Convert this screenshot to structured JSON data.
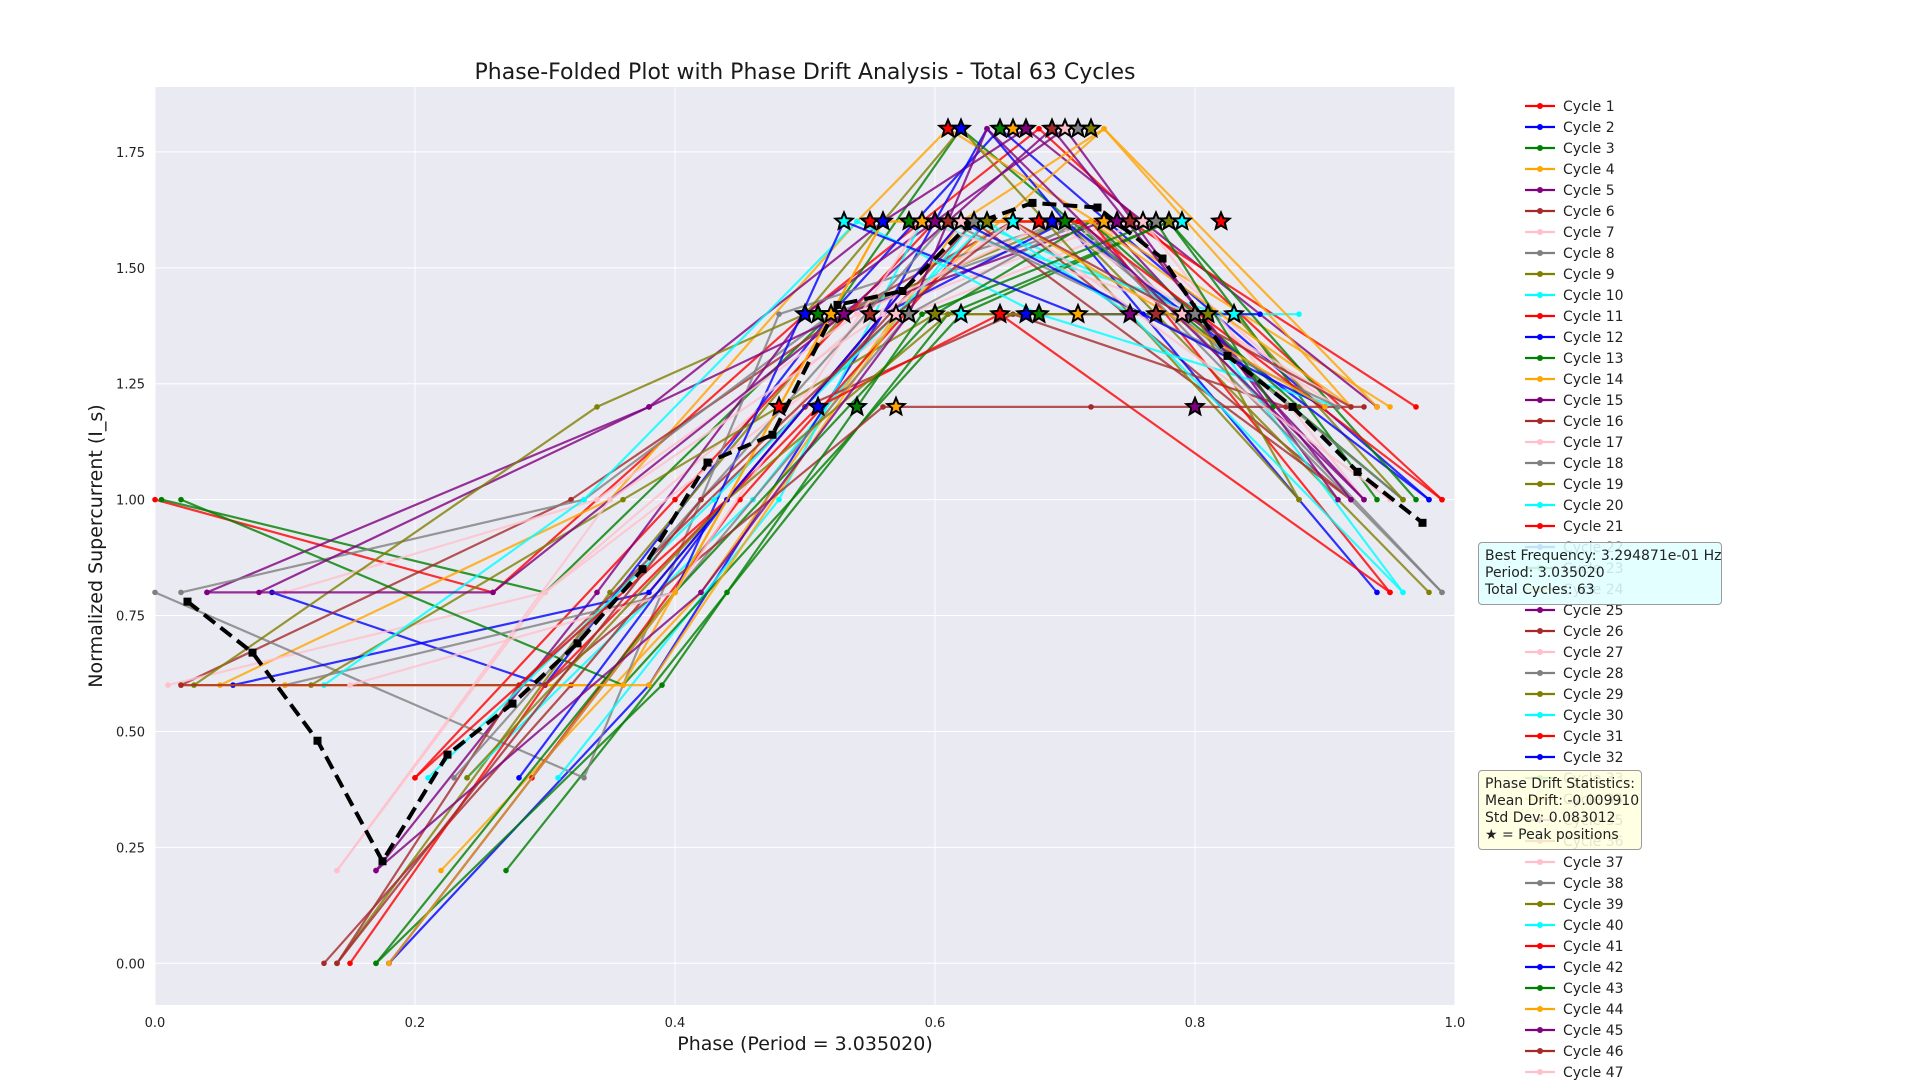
{
  "chart_data": {
    "type": "line",
    "title": "Phase-Folded Plot with Phase Drift Analysis - Total 63 Cycles",
    "xlabel": "Phase (Period = 3.035020)",
    "ylabel": "Normalized Supercurrent (I_s)",
    "xlim": [
      0.0,
      1.0
    ],
    "ylim": [
      -0.09,
      1.89
    ],
    "xticks": [
      "0.0",
      "0.2",
      "0.4",
      "0.6",
      "0.8",
      "1.0"
    ],
    "yticks": [
      "0.00",
      "0.25",
      "0.50",
      "0.75",
      "1.00",
      "1.25",
      "1.50",
      "1.75"
    ],
    "grid": true,
    "legend_position": "right",
    "series_colors": [
      "#ff0000",
      "#0000ff",
      "#008000",
      "#ffa500",
      "#800080",
      "#a52a2a",
      "#ffc0cb",
      "#808080",
      "#808000",
      "#00ffff"
    ],
    "series": [
      {
        "name": "Cycle 1",
        "x": [
          0.0,
          0.26,
          0.5,
          0.68,
          0.99
        ],
        "y": [
          1.0,
          0.8,
          1.4,
          1.8,
          1.0
        ]
      },
      {
        "name": "Cycle 2",
        "x": [
          0.09,
          0.3,
          0.52,
          0.65,
          0.98
        ],
        "y": [
          0.8,
          0.6,
          1.4,
          1.8,
          1.0
        ]
      },
      {
        "name": "Cycle 3",
        "x": [
          0.005,
          0.3,
          0.52,
          0.62,
          0.96
        ],
        "y": [
          1.0,
          0.8,
          1.4,
          1.8,
          1.0
        ]
      },
      {
        "name": "Cycle 4",
        "x": [
          0.05,
          0.35,
          0.54,
          0.61,
          0.95
        ],
        "y": [
          0.6,
          1.0,
          1.6,
          1.8,
          1.2
        ]
      },
      {
        "name": "Cycle 5",
        "x": [
          0.04,
          0.38,
          0.56,
          0.67,
          0.94
        ],
        "y": [
          0.8,
          1.2,
          1.6,
          1.8,
          1.2
        ]
      },
      {
        "name": "Cycle 6",
        "x": [
          0.02,
          0.32,
          0.53,
          0.66,
          0.92
        ],
        "y": [
          0.6,
          1.0,
          1.4,
          1.6,
          1.0
        ]
      },
      {
        "name": "Cycle 7",
        "x": [
          0.14,
          0.3,
          0.55,
          0.74,
          0.9
        ],
        "y": [
          0.2,
          0.8,
          1.4,
          1.6,
          1.2
        ]
      },
      {
        "name": "Cycle 8",
        "x": [
          0.02,
          0.33,
          0.52,
          0.72,
          0.99
        ],
        "y": [
          0.8,
          1.0,
          1.4,
          1.6,
          0.8
        ]
      },
      {
        "name": "Cycle 9",
        "x": [
          0.14,
          0.35,
          0.53,
          0.7,
          0.98
        ],
        "y": [
          0.0,
          0.8,
          1.4,
          1.6,
          0.8
        ]
      },
      {
        "name": "Cycle 10",
        "x": [
          0.24,
          0.46,
          0.63,
          0.8,
          0.96
        ],
        "y": [
          0.4,
          1.0,
          1.6,
          1.4,
          0.8
        ]
      },
      {
        "name": "Cycle 11",
        "x": [
          0.2,
          0.4,
          0.6,
          0.75,
          0.97
        ],
        "y": [
          0.4,
          1.0,
          1.6,
          1.6,
          1.2
        ]
      },
      {
        "name": "Cycle 12",
        "x": [
          0.18,
          0.38,
          0.56,
          0.64,
          0.94
        ],
        "y": [
          0.0,
          0.6,
          1.4,
          1.8,
          0.8
        ]
      },
      {
        "name": "Cycle 13",
        "x": [
          0.27,
          0.44,
          0.61,
          0.78,
          0.94
        ],
        "y": [
          0.2,
          0.8,
          1.4,
          1.6,
          1.0
        ]
      },
      {
        "name": "Cycle 14",
        "x": [
          0.22,
          0.42,
          0.57,
          0.73,
          0.92
        ],
        "y": [
          0.2,
          0.8,
          1.4,
          1.8,
          1.2
        ]
      },
      {
        "name": "Cycle 15",
        "x": [
          0.17,
          0.34,
          0.5,
          0.7,
          0.91
        ],
        "y": [
          0.2,
          0.8,
          1.4,
          1.8,
          1.0
        ]
      },
      {
        "name": "Cycle 16",
        "x": [
          0.13,
          0.32,
          0.5,
          0.66,
          0.87
        ],
        "y": [
          0.0,
          0.6,
          1.2,
          1.4,
          1.2
        ]
      },
      {
        "name": "Cycle 17",
        "x": [
          0.01,
          0.3,
          0.58,
          0.76,
          0.93
        ],
        "y": [
          0.6,
          0.8,
          1.4,
          1.6,
          1.0
        ]
      },
      {
        "name": "Cycle 18",
        "x": [
          0.0,
          0.33,
          0.48,
          0.7,
          0.96
        ],
        "y": [
          0.8,
          0.4,
          1.4,
          1.6,
          1.0
        ]
      },
      {
        "name": "Cycle 19",
        "x": [
          0.12,
          0.36,
          0.6,
          0.83,
          0.96
        ],
        "y": [
          0.6,
          1.0,
          1.4,
          1.4,
          1.0
        ]
      },
      {
        "name": "Cycle 20",
        "x": [
          0.31,
          0.48,
          0.59,
          0.82,
          0.88
        ],
        "y": [
          0.4,
          1.0,
          1.6,
          1.4,
          1.4
        ]
      },
      {
        "name": "Cycle 21",
        "x": [
          0.29,
          0.45,
          0.64,
          0.72,
          0.95
        ],
        "y": [
          0.4,
          1.0,
          1.6,
          1.6,
          0.8
        ]
      },
      {
        "name": "Cycle 22",
        "x": [
          0.06,
          0.38,
          0.56,
          0.7,
          0.98
        ],
        "y": [
          0.6,
          0.8,
          1.4,
          1.6,
          1.0
        ]
      },
      {
        "name": "Cycle 23",
        "x": [
          0.02,
          0.36,
          0.62,
          0.78,
          0.97
        ],
        "y": [
          1.0,
          0.6,
          1.4,
          1.6,
          1.0
        ]
      },
      {
        "name": "Cycle 24",
        "x": [
          0.02,
          0.38,
          0.62,
          0.73,
          0.94
        ],
        "y": [
          0.6,
          0.6,
          1.6,
          1.8,
          1.2
        ]
      },
      {
        "name": "Cycle 25",
        "x": [
          0.08,
          0.38,
          0.53,
          0.73,
          0.93
        ],
        "y": [
          0.8,
          1.2,
          1.4,
          1.6,
          1.0
        ]
      },
      {
        "name": "Cycle 26",
        "x": [
          0.14,
          0.28,
          0.5,
          0.63,
          0.92
        ],
        "y": [
          0.0,
          0.6,
          1.2,
          1.6,
          1.0
        ]
      },
      {
        "name": "Cycle 27",
        "x": [
          0.1,
          0.34,
          0.54,
          0.69,
          0.91
        ],
        "y": [
          0.8,
          1.0,
          1.4,
          1.6,
          1.2
        ]
      },
      {
        "name": "Cycle 28",
        "x": [
          0.1,
          0.4,
          0.58,
          0.71,
          0.99
        ],
        "y": [
          0.6,
          0.8,
          1.4,
          1.6,
          0.8
        ]
      },
      {
        "name": "Cycle 29",
        "x": [
          0.03,
          0.34,
          0.5,
          0.62,
          0.88
        ],
        "y": [
          0.6,
          1.2,
          1.4,
          1.8,
          1.0
        ]
      },
      {
        "name": "Cycle 30",
        "x": [
          0.13,
          0.33,
          0.54,
          0.68,
          0.91
        ],
        "y": [
          0.6,
          1.0,
          1.6,
          1.4,
          1.2
        ]
      },
      {
        "name": "Cycle 31",
        "x": [
          0.15,
          0.3,
          0.51,
          0.65,
          0.95
        ],
        "y": [
          0.0,
          0.6,
          1.2,
          1.4,
          0.8
        ]
      },
      {
        "name": "Cycle 32",
        "x": [
          0.18,
          0.4,
          0.53,
          0.71,
          0.85
        ],
        "y": [
          0.0,
          0.8,
          1.6,
          1.4,
          1.4
        ]
      },
      {
        "name": "Cycle 33",
        "x": [
          0.17,
          0.4,
          0.6,
          0.72,
          0.88
        ],
        "y": [
          0.0,
          0.8,
          1.4,
          1.6,
          1.2
        ]
      },
      {
        "name": "Cycle 34",
        "x": [
          0.1,
          0.36,
          0.56,
          0.72,
          0.92
        ],
        "y": [
          0.6,
          0.6,
          1.6,
          1.6,
          1.2
        ]
      },
      {
        "name": "Cycle 35",
        "x": [
          0.04,
          0.26,
          0.53,
          0.69,
          0.92
        ],
        "y": [
          0.8,
          0.8,
          1.4,
          1.8,
          1.0
        ]
      },
      {
        "name": "Cycle 36",
        "x": [
          0.02,
          0.3,
          0.56,
          0.72,
          0.93
        ],
        "y": [
          0.6,
          0.6,
          1.2,
          1.2,
          1.2
        ]
      },
      {
        "name": "Cycle 37",
        "x": [
          0.15,
          0.4,
          0.59,
          0.8,
          0.92
        ],
        "y": [
          0.6,
          0.8,
          1.6,
          1.4,
          1.2
        ]
      },
      {
        "name": "Cycle 38",
        "x": [
          0.23,
          0.42,
          0.61,
          0.76,
          0.91
        ],
        "y": [
          0.4,
          1.0,
          1.6,
          1.4,
          1.2
        ]
      },
      {
        "name": "Cycle 39",
        "x": [
          0.24,
          0.44,
          0.61,
          0.8,
          0.88
        ],
        "y": [
          0.4,
          1.0,
          1.4,
          1.4,
          1.0
        ]
      },
      {
        "name": "Cycle 40",
        "x": [
          0.21,
          0.43,
          0.64,
          0.75,
          0.96
        ],
        "y": [
          0.4,
          1.0,
          1.6,
          1.4,
          0.8
        ]
      },
      {
        "name": "Cycle 41",
        "x": [
          0.2,
          0.44,
          0.62,
          0.71,
          0.99
        ],
        "y": [
          0.4,
          1.0,
          1.6,
          1.6,
          1.0
        ]
      },
      {
        "name": "Cycle 42",
        "x": [
          0.28,
          0.44,
          0.62,
          0.76,
          0.9
        ],
        "y": [
          0.4,
          1.0,
          1.6,
          1.4,
          1.2
        ]
      },
      {
        "name": "Cycle 43",
        "x": [
          0.17,
          0.39,
          0.59,
          0.77,
          0.86
        ],
        "y": [
          0.0,
          0.6,
          1.4,
          1.6,
          1.2
        ]
      },
      {
        "name": "Cycle 44",
        "x": [
          0.18,
          0.4,
          0.56,
          0.66,
          0.9
        ],
        "y": [
          0.0,
          0.8,
          1.6,
          1.6,
          1.2
        ]
      },
      {
        "name": "Cycle 45",
        "x": [
          0.17,
          0.42,
          0.58,
          0.64,
          0.93
        ],
        "y": [
          0.2,
          0.8,
          1.4,
          1.8,
          1.0
        ]
      },
      {
        "name": "Cycle 46",
        "x": [
          0.14,
          0.42,
          0.57,
          0.66,
          0.92
        ],
        "y": [
          0.0,
          1.0,
          1.4,
          1.6,
          1.2
        ]
      },
      {
        "name": "Cycle 47",
        "x": [
          0.14,
          0.35,
          0.56,
          0.66,
          0.95
        ],
        "y": [
          0.2,
          1.0,
          1.4,
          1.6,
          1.0
        ]
      }
    ],
    "mean_curve": {
      "x": [
        0.025,
        0.075,
        0.125,
        0.175,
        0.225,
        0.275,
        0.325,
        0.375,
        0.425,
        0.475,
        0.525,
        0.575,
        0.625,
        0.675,
        0.725,
        0.775,
        0.825,
        0.875,
        0.925,
        0.975
      ],
      "y": [
        0.78,
        0.67,
        0.48,
        0.22,
        0.45,
        0.56,
        0.69,
        0.85,
        1.08,
        1.14,
        1.42,
        1.45,
        1.59,
        1.64,
        1.63,
        1.52,
        1.31,
        1.2,
        1.06,
        0.95
      ]
    },
    "peak_markers": {
      "x": [
        0.61,
        0.62,
        0.65,
        0.66,
        0.67,
        0.69,
        0.7,
        0.71,
        0.72,
        0.53,
        0.55,
        0.56,
        0.58,
        0.59,
        0.6,
        0.61,
        0.62,
        0.63,
        0.64,
        0.66,
        0.68,
        0.69,
        0.7,
        0.73,
        0.74,
        0.75,
        0.76,
        0.77,
        0.78,
        0.79,
        0.82,
        0.5,
        0.51,
        0.52,
        0.53,
        0.55,
        0.57,
        0.58,
        0.6,
        0.62,
        0.65,
        0.67,
        0.68,
        0.71,
        0.75,
        0.77,
        0.79,
        0.8,
        0.81,
        0.83,
        0.48,
        0.51,
        0.54,
        0.57,
        0.8
      ],
      "y": [
        1.8,
        1.8,
        1.8,
        1.8,
        1.8,
        1.8,
        1.8,
        1.8,
        1.8,
        1.6,
        1.6,
        1.6,
        1.6,
        1.6,
        1.6,
        1.6,
        1.6,
        1.6,
        1.6,
        1.6,
        1.6,
        1.6,
        1.6,
        1.6,
        1.6,
        1.6,
        1.6,
        1.6,
        1.6,
        1.6,
        1.6,
        1.4,
        1.4,
        1.4,
        1.4,
        1.4,
        1.4,
        1.4,
        1.4,
        1.4,
        1.4,
        1.4,
        1.4,
        1.4,
        1.4,
        1.4,
        1.4,
        1.4,
        1.4,
        1.4,
        1.2,
        1.2,
        1.2,
        1.2,
        1.2
      ]
    }
  },
  "info_box": {
    "frequency_line": "Best Frequency: 3.294871e-01 Hz",
    "period_line": "Period: 3.035020",
    "cycles_line": "Total Cycles: 63"
  },
  "drift_box": {
    "title_line": "Phase Drift Statistics:",
    "mean_line": "Mean Drift: -0.009910",
    "std_line": "Std Dev: 0.083012",
    "peak_line": "★ = Peak positions"
  }
}
